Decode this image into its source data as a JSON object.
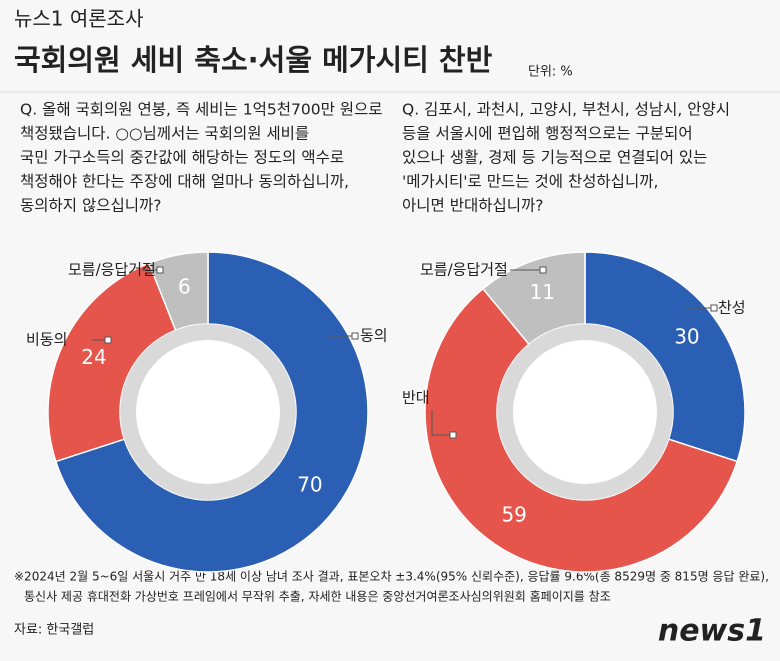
{
  "header": {
    "brand": "뉴스1 여론조사",
    "title": "국회의원 세비 축소·서울 메가시티 찬반",
    "unit": "단위: %"
  },
  "chart_data": [
    {
      "type": "pie",
      "donut": true,
      "title": [
        "Q. 올해 국회의원 연봉, 즉 세비는 1억5천700만 원으로",
        "책정됐습니다. ○○님께서는 국회의원 세비를",
        "국민 가구소득의 중간값에 해당하는 정도의 액수로",
        "책정해야 한다는 주장에 대해 얼마나 동의하십니까,",
        "동의하지 않으십니까?"
      ],
      "categories": [
        "동의",
        "비동의",
        "모름/응답거절"
      ],
      "values": [
        70,
        24,
        6
      ],
      "colors": [
        "#2b5fb4",
        "#e5554c",
        "#bfbfbf"
      ]
    },
    {
      "type": "pie",
      "donut": true,
      "title": [
        "Q. 김포시, 과천시, 고양시, 부천시, 성남시, 안양시",
        "등을 서울시에 편입해 행정적으로는 구분되어",
        "있으나 생활, 경제 등 기능적으로 연결되어 있는",
        "'메가시티'로 만드는 것에 찬성하십니까,",
        "아니면 반대하십니까?"
      ],
      "categories": [
        "찬성",
        "반대",
        "모름/응답거절"
      ],
      "values": [
        30,
        59,
        11
      ],
      "colors": [
        "#2b5fb4",
        "#e5554c",
        "#bfbfbf"
      ]
    }
  ],
  "footer": {
    "notes": [
      "※2024년 2월 5~6일 서울시 거주 만 18세 이상 남녀 조사 결과, 표본오차 ±3.4%(95% 신뢰수준), 응답률 9.6%(총 8529명 중 815명 응답 완료),",
      "통신사 제공 휴대전화 가상번호 프레임에서 무작위 추출, 자세한 내용은 중앙선거여론조사심의위원회 홈페이지를 참조"
    ],
    "source": "자료: 한국갤럽",
    "logo": "news1"
  }
}
